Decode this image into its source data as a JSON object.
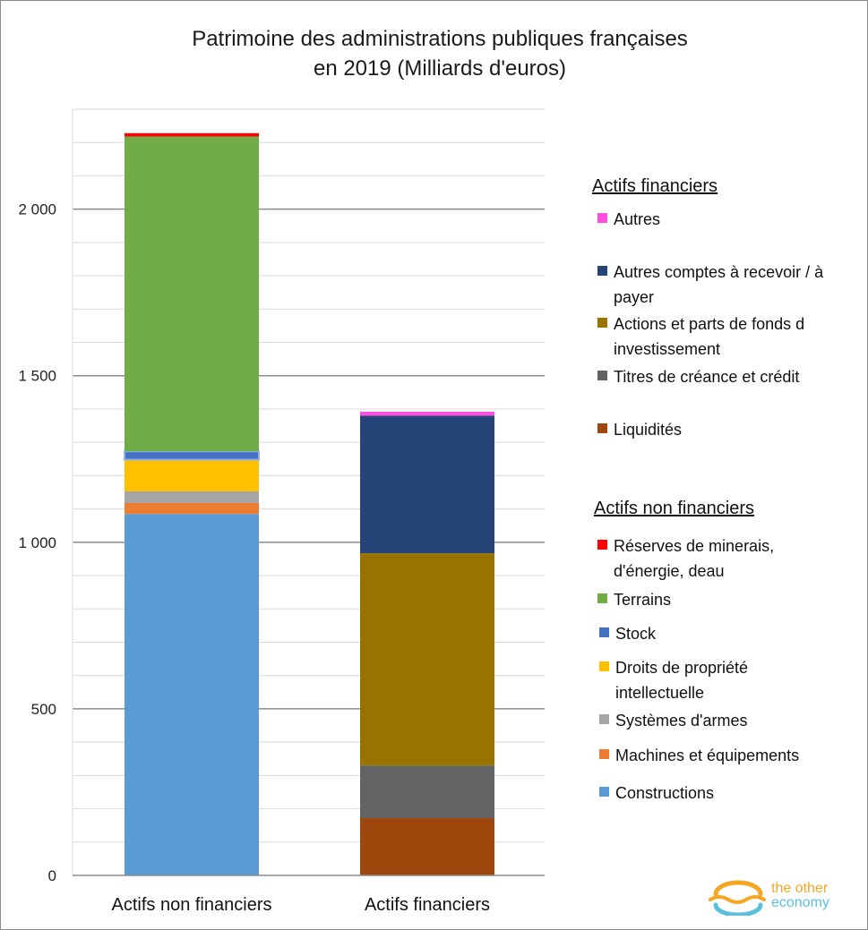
{
  "title_line1": "Patrimoine des administrations publiques françaises",
  "title_line2": "en 2019 (Milliards d'euros)",
  "chart_data": {
    "type": "bar",
    "stacked": true,
    "title": "Patrimoine des administrations publiques françaises en 2019 (Milliards d'euros)",
    "categories": [
      "Actifs non financiers",
      "Actifs financiers"
    ],
    "ylim": [
      0,
      2300
    ],
    "yticks": [
      0,
      500,
      1000,
      1500,
      2000
    ],
    "ytick_labels": [
      "0",
      "500",
      "1 000",
      "1 500",
      "2 000"
    ],
    "grid": true,
    "legend_position": "right",
    "series": [
      {
        "name": "Constructions",
        "color": "#5b9bd5",
        "values": [
          1085,
          0
        ]
      },
      {
        "name": "Machines et équipements",
        "color": "#ed7d31",
        "values": [
          33,
          0
        ]
      },
      {
        "name": "Systèmes d'armes",
        "color": "#a5a5a5",
        "values": [
          35,
          0
        ]
      },
      {
        "name": "Droits de propriété intellectuelle",
        "color": "#ffc000",
        "values": [
          95,
          0
        ]
      },
      {
        "name": "Stock",
        "color": "#4472c4",
        "values": [
          25,
          0
        ]
      },
      {
        "name": "Terrains",
        "color": "#70ad47",
        "values": [
          945,
          0
        ]
      },
      {
        "name": "Réserves de minerais, d'énergie, deau",
        "color": "#ff0000",
        "values": [
          10,
          0
        ]
      },
      {
        "name": "Liquidités",
        "color": "#9e480e",
        "values": [
          0,
          172
        ]
      },
      {
        "name": "Titres de créance et crédit",
        "color": "#636363",
        "values": [
          0,
          158
        ]
      },
      {
        "name": "Actions et parts de fonds d investissement",
        "color": "#997300",
        "values": [
          0,
          637
        ]
      },
      {
        "name": "Autres comptes à recevoir / à payer",
        "color": "#264478",
        "values": [
          0,
          413
        ]
      },
      {
        "name": "Autres",
        "color": "#ff4fe0",
        "values": [
          0,
          12
        ]
      }
    ]
  },
  "legend": {
    "financial_heading": "Actifs financiers",
    "financial_items": [
      {
        "label": "Autres",
        "color": "#ff4fe0"
      },
      {
        "label": "Autres comptes à recevoir / à payer",
        "color": "#264478"
      },
      {
        "label": "Actions et parts de fonds d investissement",
        "color": "#997300"
      },
      {
        "label": "Titres de créance et crédit",
        "color": "#636363"
      },
      {
        "label": "Liquidités",
        "color": "#9e480e"
      }
    ],
    "nonfinancial_heading": "Actifs non financiers",
    "nonfinancial_items": [
      {
        "label": "Réserves de minerais, d'énergie, deau",
        "color": "#ff0000"
      },
      {
        "label": "Terrains",
        "color": "#70ad47"
      },
      {
        "label": "Stock",
        "color": "#4472c4"
      },
      {
        "label": "Droits de propriété intellectuelle",
        "color": "#ffc000"
      },
      {
        "label": "Systèmes d'armes",
        "color": "#a5a5a5"
      },
      {
        "label": "Machines et équipements",
        "color": "#ed7d31"
      },
      {
        "label": "Constructions",
        "color": "#5b9bd5"
      }
    ]
  },
  "logo": {
    "line1": "the other",
    "line2": "economy"
  }
}
